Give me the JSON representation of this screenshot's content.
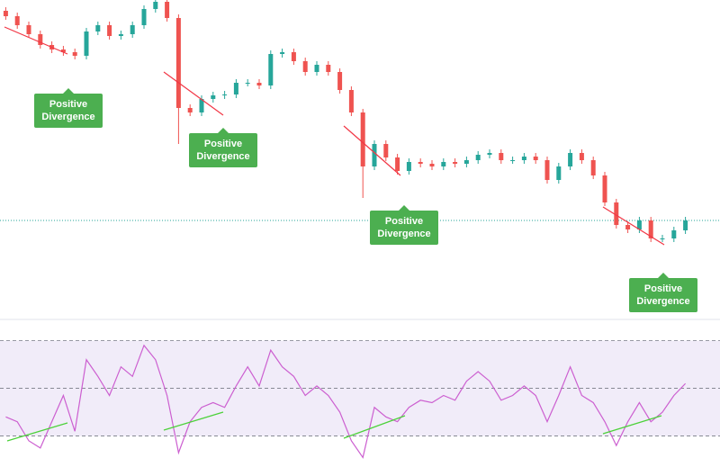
{
  "chart_data": [
    {
      "type": "candlestick",
      "open": [
        338,
        332,
        322,
        312,
        300,
        295,
        292,
        288,
        315,
        322,
        310,
        312,
        322,
        340,
        348,
        330,
        230,
        225,
        240,
        244,
        245,
        258,
        258,
        255,
        290,
        292,
        282,
        270,
        278,
        270,
        250,
        225,
        165,
        190,
        175,
        160,
        170,
        168,
        165,
        170,
        168,
        172,
        178,
        180,
        172,
        172,
        176,
        172,
        150,
        165,
        180,
        172,
        155,
        125,
        100,
        95,
        105,
        85,
        85,
        94
      ],
      "high": [
        342,
        336,
        326,
        316,
        304,
        299,
        296,
        319,
        326,
        326,
        316,
        326,
        344,
        352,
        352,
        334,
        234,
        244,
        248,
        249,
        262,
        262,
        262,
        294,
        296,
        296,
        286,
        282,
        282,
        274,
        254,
        229,
        194,
        194,
        179,
        174,
        174,
        172,
        174,
        174,
        176,
        182,
        184,
        184,
        176,
        180,
        180,
        176,
        169,
        184,
        184,
        176,
        159,
        129,
        104,
        109,
        109,
        89,
        98,
        109
      ],
      "low": [
        328,
        318,
        308,
        296,
        291,
        288,
        284,
        284,
        311,
        306,
        306,
        308,
        318,
        336,
        326,
        190,
        221,
        221,
        236,
        240,
        241,
        254,
        251,
        251,
        286,
        278,
        266,
        266,
        266,
        246,
        221,
        130,
        161,
        171,
        156,
        156,
        164,
        161,
        161,
        164,
        164,
        168,
        174,
        168,
        168,
        168,
        168,
        146,
        146,
        161,
        168,
        151,
        121,
        96,
        91,
        91,
        81,
        81,
        81,
        90
      ],
      "close": [
        332,
        322,
        312,
        300,
        295,
        292,
        288,
        315,
        322,
        310,
        312,
        322,
        340,
        348,
        330,
        230,
        225,
        240,
        244,
        245,
        258,
        258,
        255,
        290,
        292,
        282,
        270,
        278,
        270,
        250,
        225,
        165,
        190,
        175,
        160,
        170,
        168,
        165,
        170,
        168,
        172,
        178,
        180,
        172,
        172,
        176,
        172,
        150,
        165,
        180,
        172,
        155,
        125,
        100,
        95,
        105,
        85,
        85,
        94,
        105
      ],
      "up_color": "#26a69a",
      "down_color": "#ef5350",
      "last_price_color": "#26a69a",
      "ylim": [
        0,
        350
      ],
      "annotations": [
        "Positive\nDivergence",
        "Positive\nDivergence",
        "Positive\nDivergence",
        "Positive\nDivergence"
      ]
    },
    {
      "type": "line",
      "values": [
        38,
        36,
        28,
        25,
        36,
        47,
        32,
        62,
        55,
        47,
        59,
        55,
        68,
        62,
        47,
        23,
        36,
        42,
        44,
        42,
        51,
        59,
        51,
        66,
        59,
        55,
        47,
        51,
        47,
        40,
        28,
        21,
        42,
        38,
        36,
        42,
        45,
        44,
        47,
        45,
        53,
        57,
        53,
        45,
        47,
        51,
        47,
        36,
        47,
        59,
        47,
        44,
        36,
        26,
        36,
        44,
        36,
        40,
        47,
        52
      ],
      "color": "#cc5fd0",
      "band_color": "#f1ecf9",
      "ylim": [
        14,
        80
      ],
      "yticks": [
        30,
        50,
        70
      ]
    }
  ]
}
